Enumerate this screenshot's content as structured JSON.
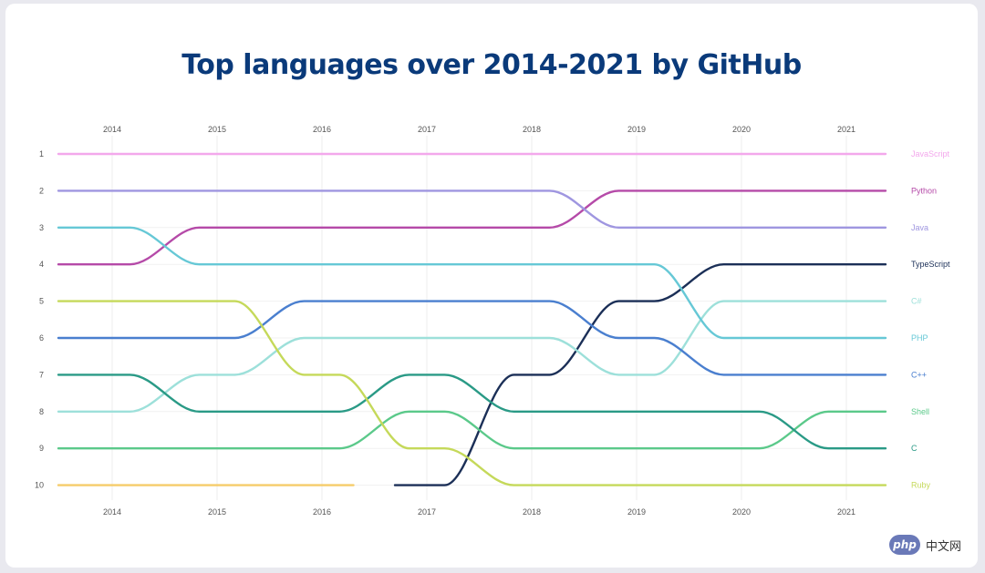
{
  "watermark": {
    "badge": "php",
    "text": "中文网"
  },
  "chart_data": {
    "type": "line",
    "title": "Top languages over 2014-2021 by GitHub",
    "years": [
      "2014",
      "2015",
      "2016",
      "2017",
      "2018",
      "2019",
      "2020",
      "2021"
    ],
    "ranks": [
      "1",
      "2",
      "3",
      "4",
      "5",
      "6",
      "7",
      "8",
      "9",
      "10"
    ],
    "xlabel": "",
    "ylabel": "",
    "grid": true,
    "y_inverted": true,
    "series": [
      {
        "name": "JavaScript",
        "color": "#f3a8ec",
        "ranks": [
          1,
          1,
          1,
          1,
          1,
          1,
          1,
          1
        ]
      },
      {
        "name": "Python",
        "color": "#b54aa8",
        "ranks": [
          4,
          3,
          3,
          3,
          3,
          2,
          2,
          2
        ]
      },
      {
        "name": "Java",
        "color": "#9f96e0",
        "ranks": [
          2,
          2,
          2,
          2,
          2,
          3,
          3,
          3
        ]
      },
      {
        "name": "TypeScript",
        "color": "#1b2f57",
        "ranks": [
          null,
          null,
          null,
          10,
          7,
          5,
          4,
          4
        ]
      },
      {
        "name": "C#",
        "color": "#9de0da",
        "ranks": [
          8,
          7,
          6,
          6,
          6,
          7,
          5,
          5
        ]
      },
      {
        "name": "PHP",
        "color": "#66c8d6",
        "ranks": [
          3,
          4,
          4,
          4,
          4,
          4,
          6,
          6
        ]
      },
      {
        "name": "C++",
        "color": "#4a7fcf",
        "ranks": [
          6,
          6,
          5,
          5,
          5,
          6,
          7,
          7
        ]
      },
      {
        "name": "Shell",
        "color": "#5bc98a",
        "ranks": [
          9,
          9,
          9,
          8,
          9,
          9,
          9,
          8
        ]
      },
      {
        "name": "C",
        "color": "#2a9a86",
        "ranks": [
          7,
          8,
          8,
          7,
          8,
          8,
          8,
          9
        ]
      },
      {
        "name": "Ruby",
        "color": "#c5d95a",
        "ranks": [
          5,
          5,
          7,
          9,
          10,
          10,
          10,
          10
        ]
      },
      {
        "name": "",
        "color": "#f5cc6a",
        "ranks": [
          10,
          10,
          10,
          null,
          null,
          null,
          null,
          null
        ],
        "end_year": 2016.3
      }
    ]
  }
}
